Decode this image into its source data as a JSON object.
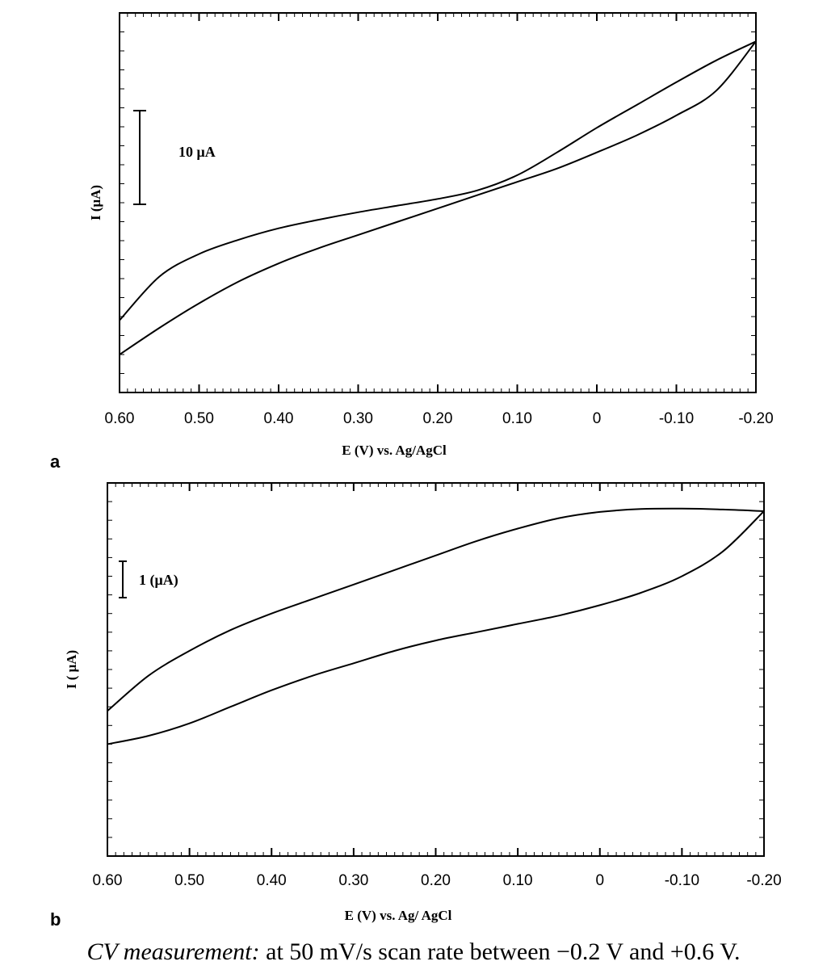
{
  "chart_data": [
    {
      "panel": "a",
      "type": "line",
      "xlabel": "E (V) vs. Ag/AgCl",
      "ylabel": "I (μA)",
      "x_ticks": [
        "0.60",
        "0.50",
        "0.40",
        "0.30",
        "0.20",
        "0.10",
        "0",
        "-0.10",
        "-0.20"
      ],
      "x_tick_values": [
        0.6,
        0.5,
        0.4,
        0.3,
        0.2,
        0.1,
        0.0,
        -0.1,
        -0.2
      ],
      "xlim": [
        0.6,
        -0.2
      ],
      "ylim": [
        -20,
        20
      ],
      "x_reversed": true,
      "scale_bar": {
        "label": "10 μA",
        "value": 10
      },
      "series": [
        {
          "x": [
            0.6,
            0.55,
            0.5,
            0.45,
            0.4,
            0.35,
            0.3,
            0.25,
            0.2,
            0.15,
            0.1,
            0.05,
            0.0,
            -0.05,
            -0.1,
            -0.15,
            -0.2
          ],
          "y": [
            -12.4,
            -7.8,
            -5.4,
            -3.9,
            -2.7,
            -1.8,
            -1.0,
            -0.3,
            0.4,
            1.3,
            2.9,
            5.3,
            7.9,
            10.3,
            12.7,
            15.0,
            17.0
          ]
        },
        {
          "x": [
            0.6,
            0.55,
            0.5,
            0.45,
            0.4,
            0.35,
            0.3,
            0.25,
            0.2,
            0.15,
            0.1,
            0.05,
            0.0,
            -0.05,
            -0.1,
            -0.15,
            -0.2
          ],
          "y": [
            -16.0,
            -13.2,
            -10.6,
            -8.3,
            -6.4,
            -4.8,
            -3.4,
            -2.0,
            -0.6,
            0.8,
            2.2,
            3.6,
            5.3,
            7.1,
            9.2,
            11.8,
            17.0
          ]
        }
      ]
    },
    {
      "panel": "b",
      "type": "line",
      "xlabel": "E (V) vs. Ag/ AgCl",
      "ylabel": "I ( μA)",
      "x_ticks": [
        "0.60",
        "0.50",
        "0.40",
        "0.30",
        "0.20",
        "0.10",
        "0",
        "-0.10",
        "-0.20"
      ],
      "x_tick_values": [
        0.6,
        0.5,
        0.4,
        0.3,
        0.2,
        0.1,
        0.0,
        -0.1,
        -0.2
      ],
      "xlim": [
        0.6,
        -0.2
      ],
      "ylim": [
        -5.5,
        3.5
      ],
      "x_reversed": true,
      "scale_bar": {
        "label": "1 (μA)",
        "value": 1
      },
      "series": [
        {
          "x": [
            0.6,
            0.55,
            0.5,
            0.45,
            0.4,
            0.35,
            0.3,
            0.25,
            0.2,
            0.15,
            0.1,
            0.05,
            0.0,
            -0.05,
            -0.1,
            -0.15,
            -0.2
          ],
          "y": [
            -2.0,
            -1.15,
            -0.55,
            -0.05,
            0.35,
            0.7,
            1.05,
            1.4,
            1.75,
            2.1,
            2.4,
            2.65,
            2.8,
            2.87,
            2.88,
            2.86,
            2.82
          ]
        },
        {
          "x": [
            0.6,
            0.55,
            0.5,
            0.45,
            0.4,
            0.35,
            0.3,
            0.25,
            0.2,
            0.15,
            0.1,
            0.05,
            0.0,
            -0.05,
            -0.1,
            -0.15,
            -0.2
          ],
          "y": [
            -2.8,
            -2.6,
            -2.3,
            -1.9,
            -1.5,
            -1.15,
            -0.85,
            -0.55,
            -0.3,
            -0.1,
            0.1,
            0.3,
            0.55,
            0.85,
            1.25,
            1.85,
            2.82
          ]
        }
      ]
    }
  ],
  "caption": {
    "lead": "CV measurement:",
    "text": " at 50 mV/s scan rate between −0.2 V and +0.6 V."
  }
}
